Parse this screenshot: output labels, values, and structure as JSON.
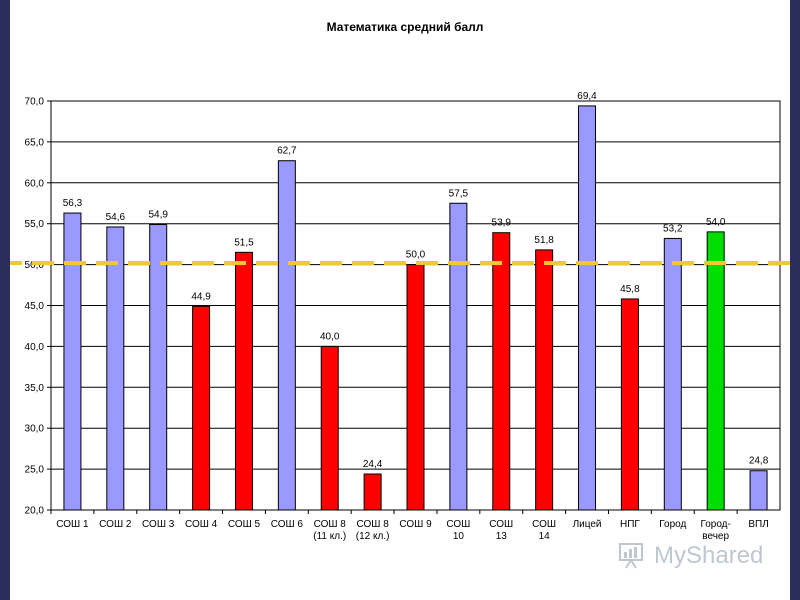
{
  "chart_data": {
    "type": "bar",
    "title": "Математика средний балл",
    "categories": [
      [
        "СОШ 1"
      ],
      [
        "СОШ 2"
      ],
      [
        "СОШ 3"
      ],
      [
        "СОШ 4"
      ],
      [
        "СОШ 5"
      ],
      [
        "СОШ 6"
      ],
      [
        "СОШ 8",
        "(11 кл.)"
      ],
      [
        "СОШ 8",
        "(12 кл.)"
      ],
      [
        "СОШ 9"
      ],
      [
        "СОШ",
        "10"
      ],
      [
        "СОШ",
        "13"
      ],
      [
        "СОШ",
        "14"
      ],
      [
        "Лицей"
      ],
      [
        "НПГ"
      ],
      [
        "Город"
      ],
      [
        "Город-",
        "вечер"
      ],
      [
        "ВПЛ"
      ]
    ],
    "values": [
      56.3,
      54.6,
      54.9,
      44.9,
      51.5,
      62.7,
      40.0,
      24.4,
      50.0,
      57.5,
      53.9,
      51.8,
      69.4,
      45.8,
      53.2,
      54.0,
      24.8
    ],
    "value_labels": [
      "56,3",
      "54,6",
      "54,9",
      "44,9",
      "51,5",
      "62,7",
      "40,0",
      "24,4",
      "50,0",
      "57,5",
      "53,9",
      "51,8",
      "69,4",
      "45,8",
      "53,2",
      "54,0",
      "24,8"
    ],
    "bar_colors": [
      "#9999ff",
      "#9999ff",
      "#9999ff",
      "#ff0000",
      "#ff0000",
      "#9999ff",
      "#ff0000",
      "#ff0000",
      "#ff0000",
      "#9999ff",
      "#ff0000",
      "#ff0000",
      "#9999ff",
      "#ff0000",
      "#9999ff",
      "#00dd00",
      "#9999ff"
    ],
    "ylim": [
      20,
      70
    ],
    "yticks": [
      20,
      25,
      30,
      35,
      40,
      45,
      50,
      55,
      60,
      65,
      70
    ],
    "ytick_labels": [
      "20,0",
      "25,0",
      "30,0",
      "35,0",
      "40,0",
      "45,0",
      "50,0",
      "55,0",
      "60,0",
      "65,0",
      "70,0"
    ],
    "grid": true,
    "reference_line": {
      "value": 50.2,
      "color": "#f2c832",
      "style": "dashed"
    }
  },
  "watermark": {
    "text": "MyShared"
  }
}
